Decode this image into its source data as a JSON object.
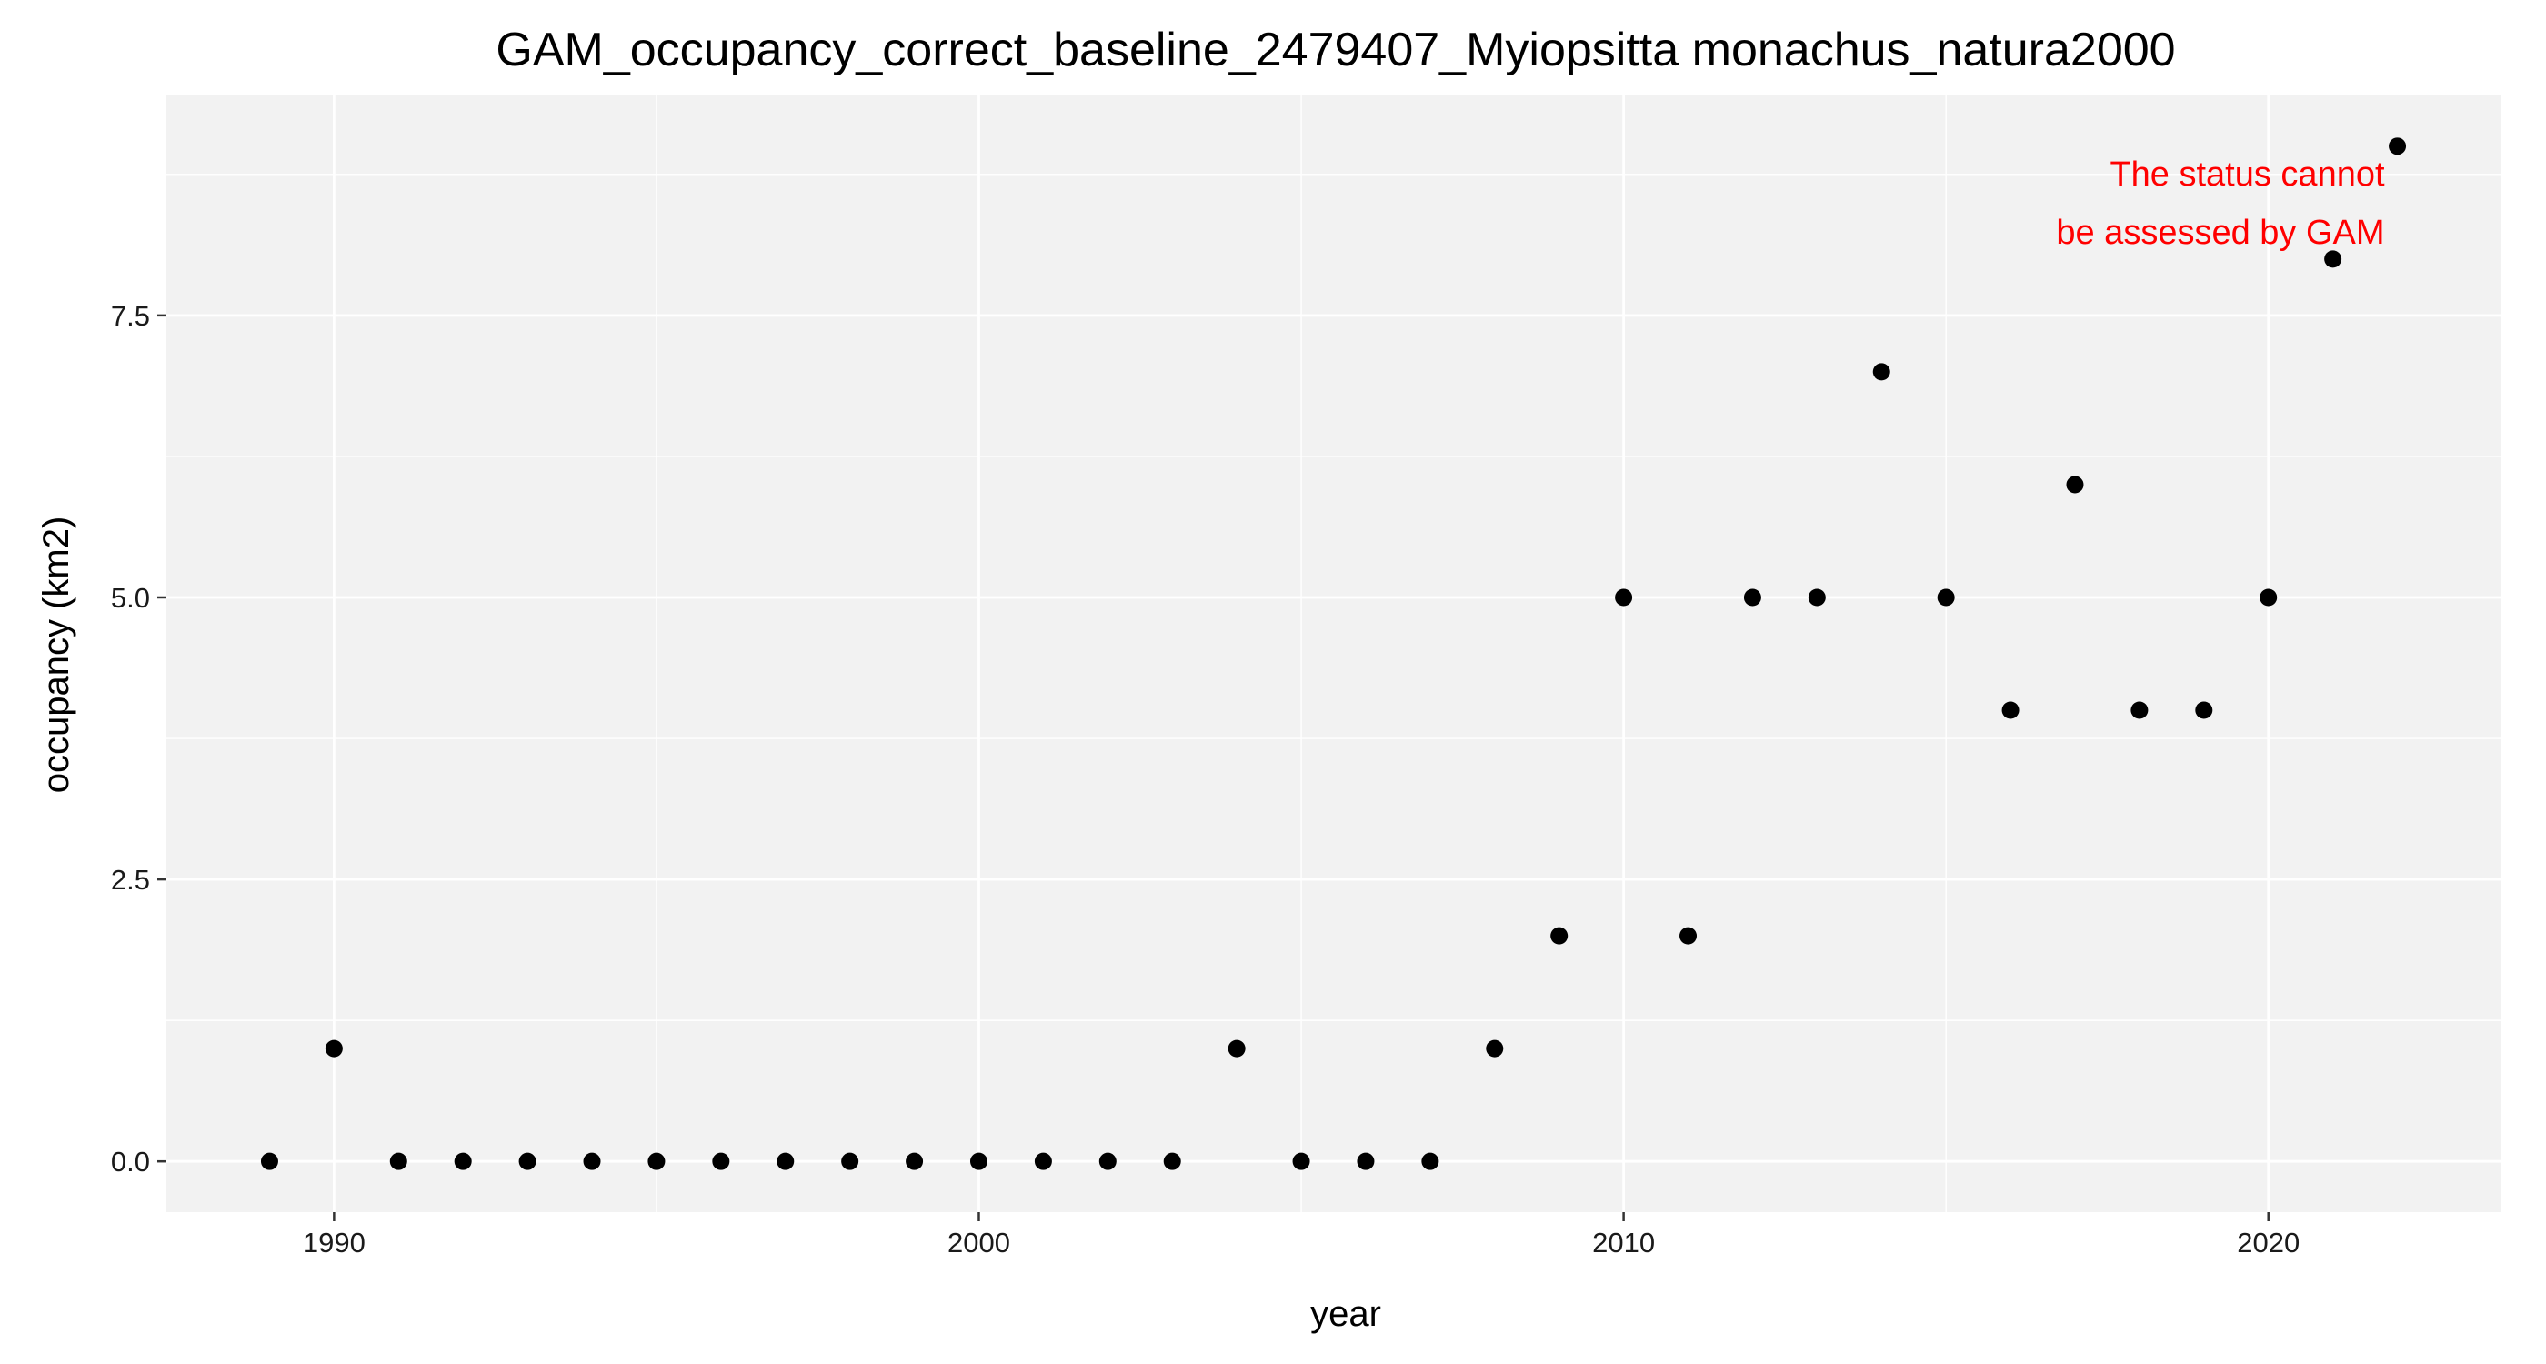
{
  "chart_data": {
    "type": "scatter",
    "title": "GAM_occupancy_correct_baseline_2479407_Myiopsitta monachus_natura2000",
    "xlabel": "year",
    "ylabel": "occupancy (km2)",
    "xlim": [
      1987.4,
      2023.6
    ],
    "ylim": [
      -0.45,
      9.45
    ],
    "x_ticks": [
      1990,
      2000,
      2010,
      2020
    ],
    "y_ticks": [
      0,
      2.5,
      5,
      7.5
    ],
    "x_tick_labels": [
      "1990",
      "2000",
      "2010",
      "2020"
    ],
    "y_tick_labels": [
      "0.0",
      "2.5",
      "5.0",
      "7.5"
    ],
    "grid": true,
    "point_color": "#000000",
    "panel_background": "#f2f2f2",
    "grid_color": "#ffffff",
    "x": [
      1989,
      1990,
      1991,
      1992,
      1993,
      1994,
      1995,
      1996,
      1997,
      1998,
      1999,
      2000,
      2001,
      2002,
      2003,
      2004,
      2005,
      2006,
      2007,
      2008,
      2009,
      2010,
      2011,
      2012,
      2013,
      2014,
      2015,
      2016,
      2017,
      2018,
      2019,
      2020,
      2021,
      2022
    ],
    "y": [
      0,
      1,
      0,
      0,
      0,
      0,
      0,
      0,
      0,
      0,
      0,
      0,
      0,
      0,
      0,
      1,
      0,
      0,
      0,
      1,
      2,
      5,
      2,
      5,
      5,
      7,
      5,
      4,
      6,
      4,
      4,
      5,
      8,
      9
    ],
    "annotation": {
      "lines": [
        "The status cannot",
        "be assessed by GAM"
      ],
      "color": "#ff0000"
    }
  }
}
